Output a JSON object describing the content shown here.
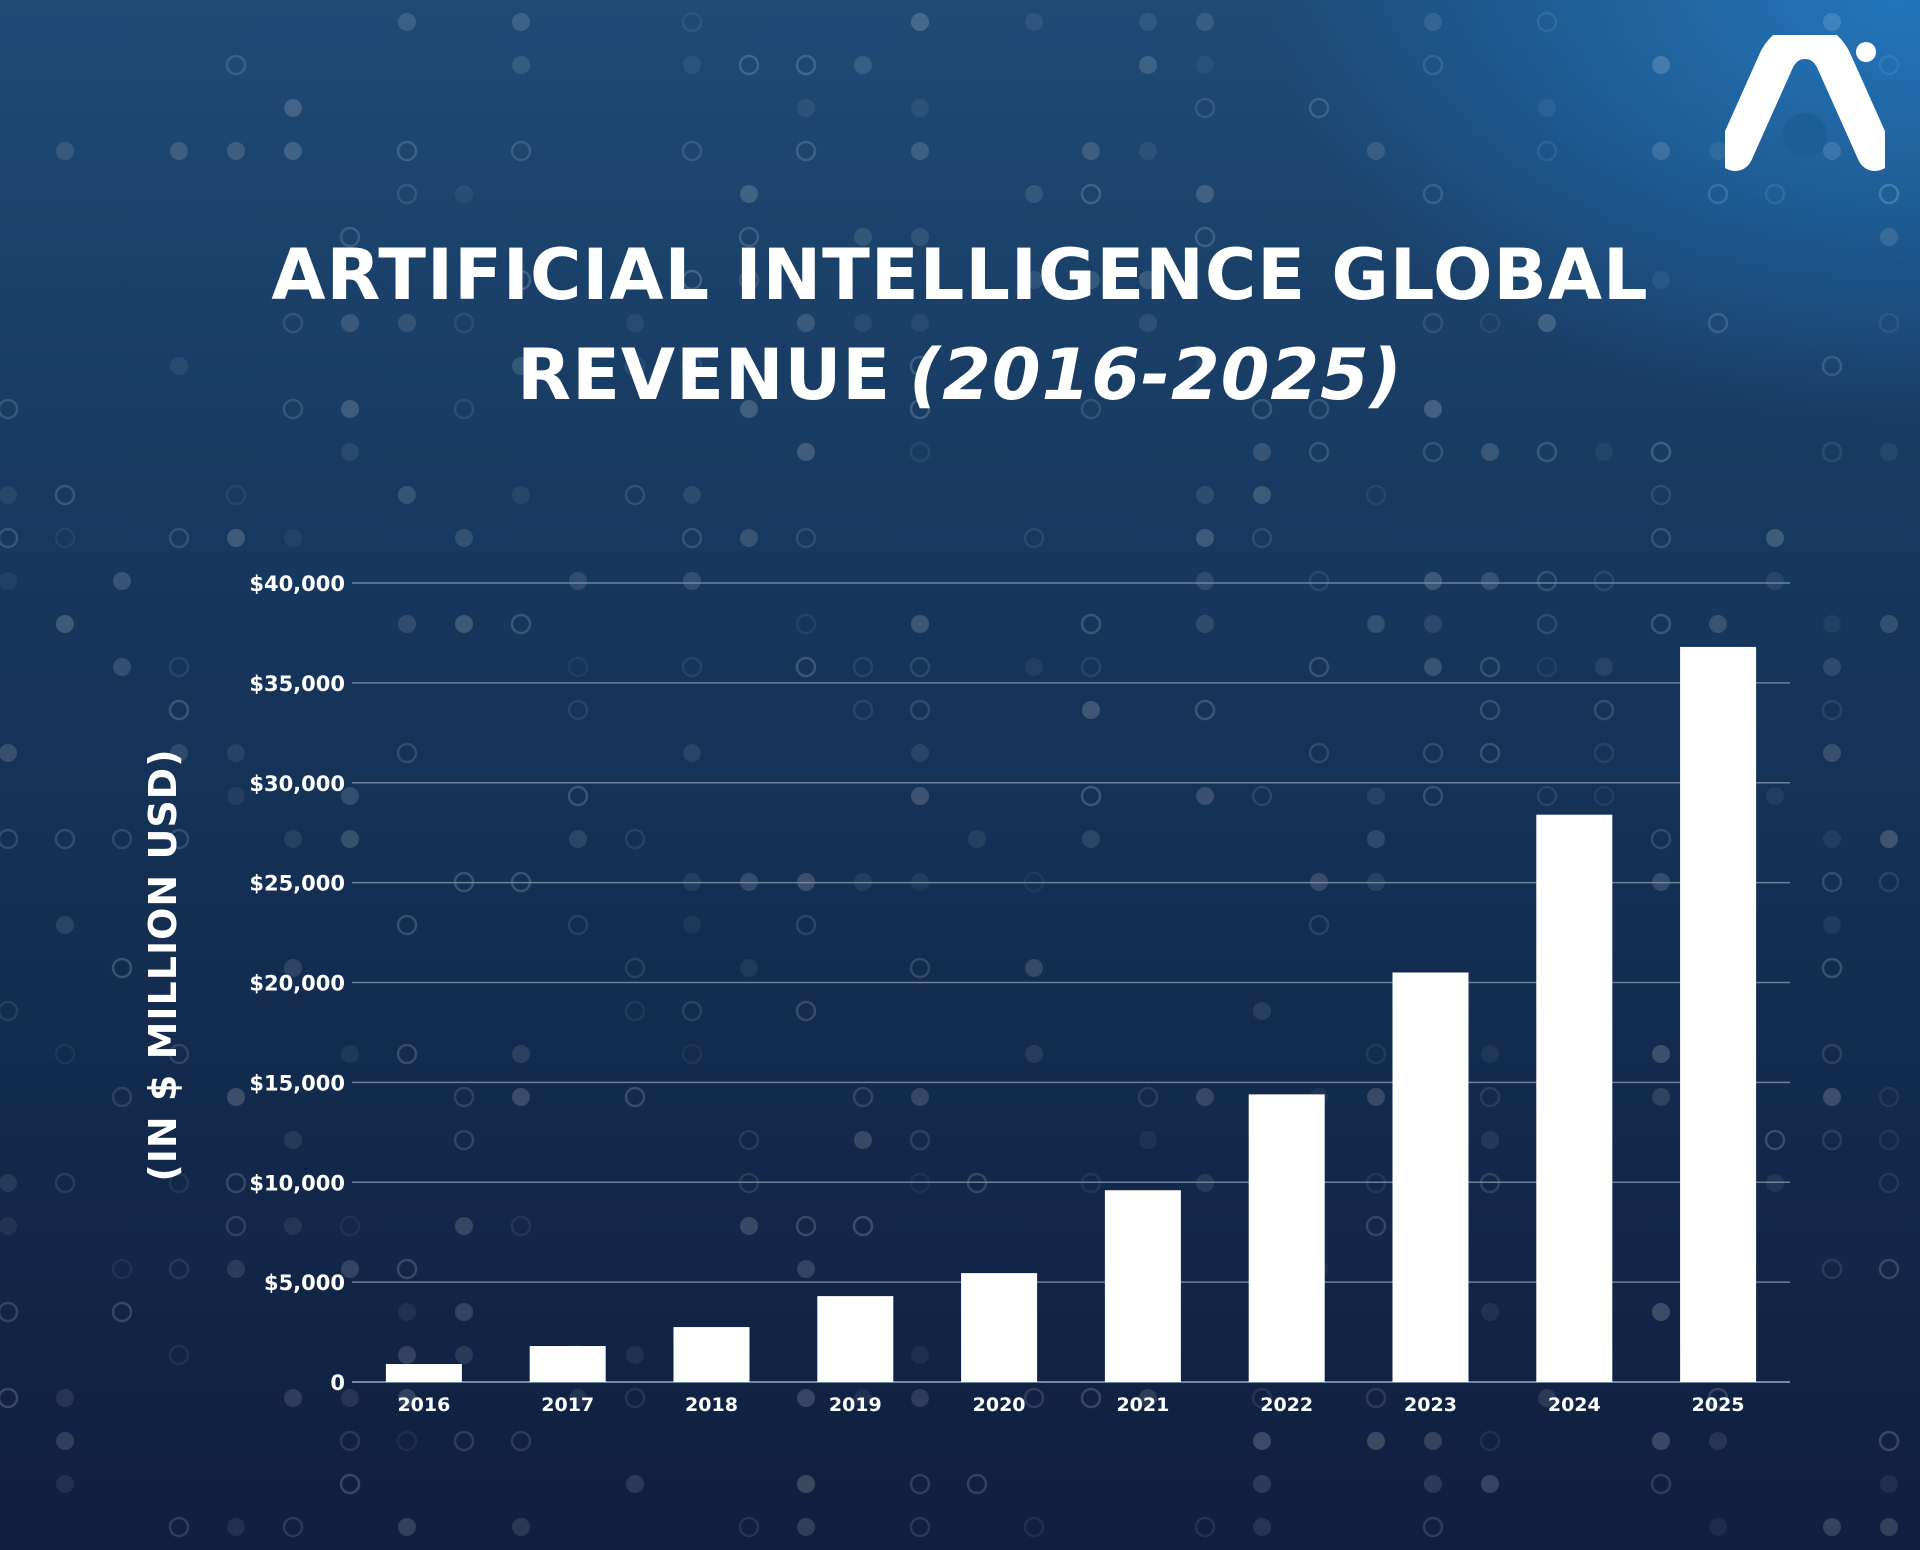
{
  "title": {
    "line1": "ARTIFICIAL INTELLIGENCE GLOBAL",
    "line2_main": "REVENUE",
    "line2_years": "(2016-2025)"
  },
  "logo": {
    "icon": "brand-arch-logo-icon"
  },
  "colors": {
    "background_top": "#1e4a75",
    "background_bottom": "#101f3f",
    "accent_glow": "#237dc8",
    "bars": "#ffffff",
    "text": "#ffffff",
    "gridlines": "#7d8fa8"
  },
  "chart_data": {
    "type": "bar",
    "title": "ARTIFICIAL INTELLIGENCE GLOBAL REVENUE (2016-2025)",
    "xlabel": "",
    "ylabel": "(IN $ MILLION USD)",
    "categories": [
      "2016",
      "2017",
      "2018",
      "2019",
      "2020",
      "2021",
      "2022",
      "2023",
      "2024",
      "2025"
    ],
    "values": [
      900,
      1800,
      2750,
      4300,
      5450,
      9600,
      14400,
      20500,
      28400,
      36800
    ],
    "ylim": [
      0,
      40000
    ],
    "yticks": [
      0,
      5000,
      10000,
      15000,
      20000,
      25000,
      30000,
      35000,
      40000
    ],
    "ytick_labels": [
      "0",
      "$5,000",
      "$10,000",
      "$15,000",
      "$20,000",
      "$25,000",
      "$30,000",
      "$35,000",
      "$40,000"
    ],
    "grid": true,
    "legend": "none"
  }
}
